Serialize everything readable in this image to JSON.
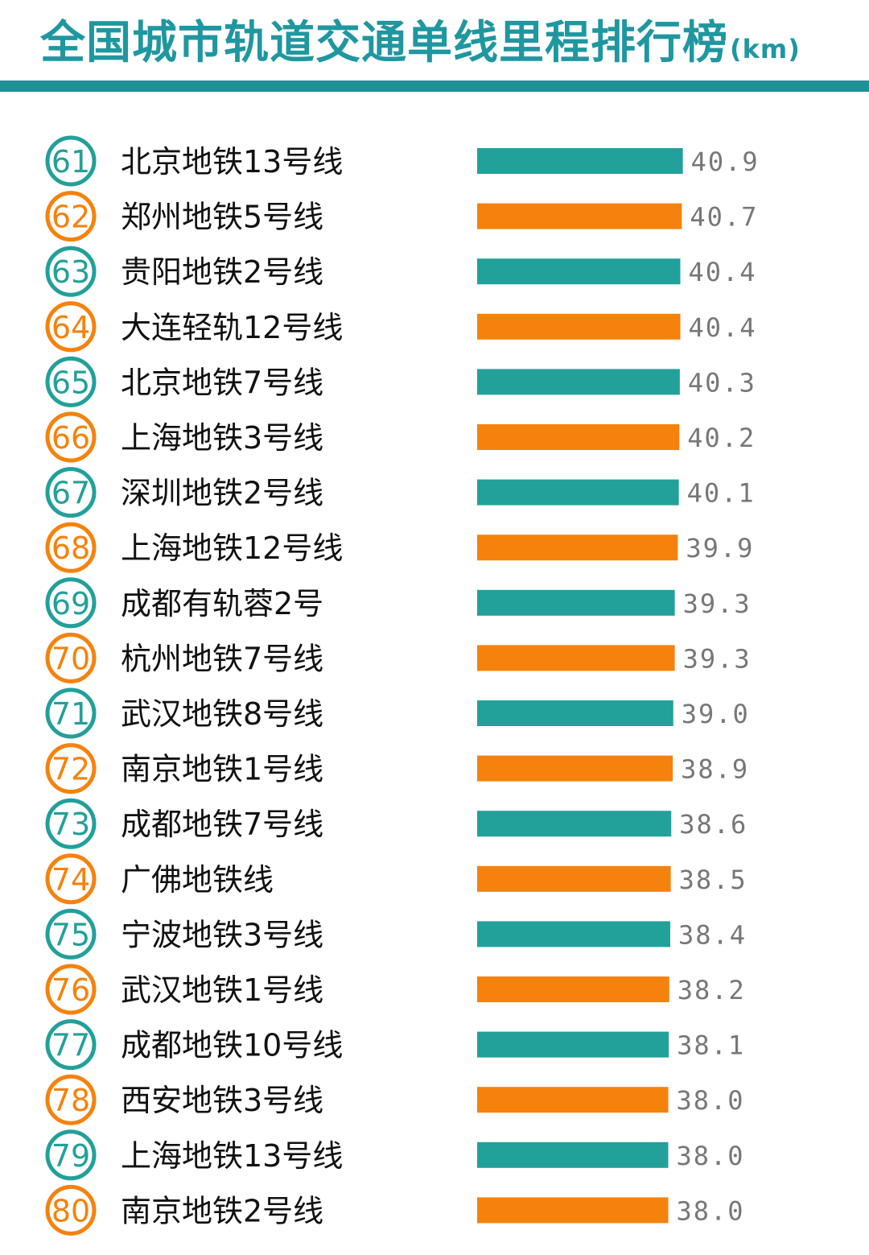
{
  "header": {
    "title": "全国城市轨道交通单线里程排行榜",
    "unit": "(km)"
  },
  "colors": {
    "title": "#1f97a0",
    "rule": "#1f8f98",
    "teal": "#22a09a",
    "orange": "#f5820d",
    "value_text": "#777777"
  },
  "chart_data": {
    "type": "bar",
    "orientation": "horizontal",
    "title": "全国城市轨道交通单线里程排行榜",
    "unit": "km",
    "ranks": [
      "61",
      "62",
      "63",
      "64",
      "65",
      "66",
      "67",
      "68",
      "69",
      "70",
      "71",
      "72",
      "73",
      "74",
      "75",
      "76",
      "77",
      "78",
      "79",
      "80"
    ],
    "categories": [
      "北京地铁13号线",
      "郑州地铁5号线",
      "贵阳地铁2号线",
      "大连轻轨12号线",
      "北京地铁7号线",
      "上海地铁3号线",
      "深圳地铁2号线",
      "上海地铁12号线",
      "成都有轨蓉2号",
      "杭州地铁7号线",
      "武汉地铁8号线",
      "南京地铁1号线",
      "成都地铁7号线",
      "广佛地铁线",
      "宁波地铁3号线",
      "武汉地铁1号线",
      "成都地铁10号线",
      "西安地铁3号线",
      "上海地铁13号线",
      "南京地铁2号线"
    ],
    "values": [
      40.9,
      40.7,
      40.4,
      40.4,
      40.3,
      40.2,
      40.1,
      39.9,
      39.3,
      39.3,
      39.0,
      38.9,
      38.6,
      38.5,
      38.4,
      38.2,
      38.1,
      38.0,
      38.0,
      38.0
    ],
    "value_labels": [
      "40.9",
      "40.7",
      "40.4",
      "40.4",
      "40.3",
      "40.2",
      "40.1",
      "39.9",
      "39.3",
      "39.3",
      "39.0",
      "38.9",
      "38.6",
      "38.5",
      "38.4",
      "38.2",
      "38.1",
      "38.0",
      "38.0",
      "38.0"
    ],
    "series_colors": [
      "teal",
      "orange"
    ],
    "grid": false,
    "legend": "none"
  }
}
